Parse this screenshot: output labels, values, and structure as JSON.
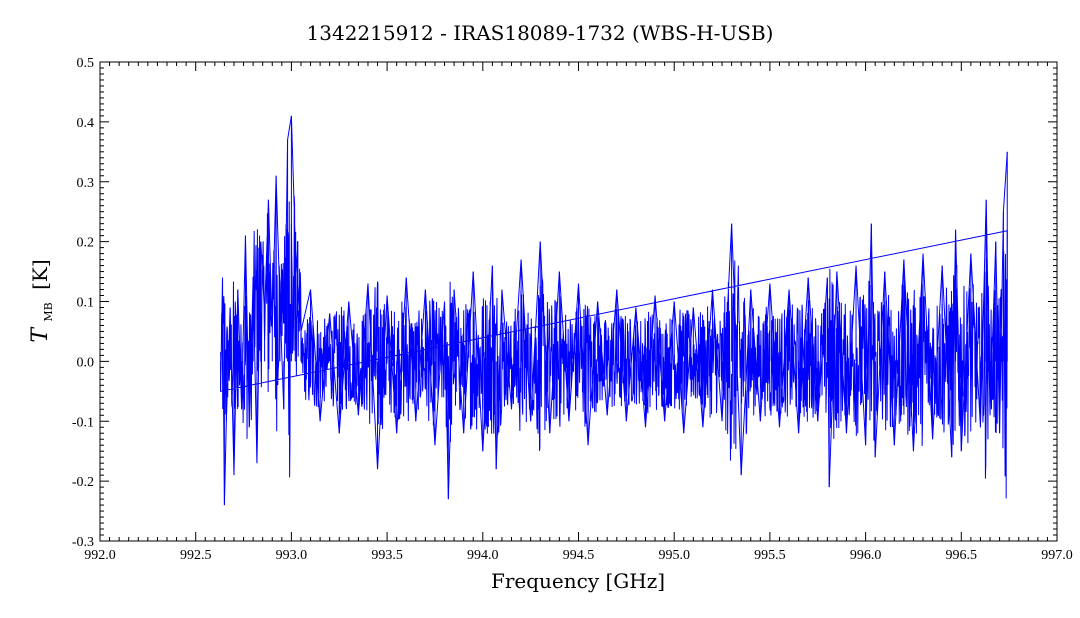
{
  "chart_data": {
    "type": "line",
    "title": "1342215912 - IRAS18089-1732 (WBS-H-USB)",
    "xlabel": "Frequency [GHz]",
    "ylabel_main": "T",
    "ylabel_sub": "MB",
    "ylabel_unit": "[K]",
    "xlim": [
      992.0,
      997.0
    ],
    "ylim": [
      -0.3,
      0.5
    ],
    "x_ticks": [
      "992.0",
      "992.5",
      "993.0",
      "993.5",
      "994.0",
      "994.5",
      "995.0",
      "995.5",
      "996.0",
      "996.5",
      "997.0"
    ],
    "y_ticks": [
      "0.5",
      "0.4",
      "0.3",
      "0.2",
      "0.1",
      "0.0",
      "-0.1",
      "-0.2",
      "-0.3"
    ],
    "grid": false,
    "series": [
      {
        "color": "#0000ff",
        "x_range": [
          992.63,
          996.74
        ],
        "points": [
          [
            992.63,
            -0.05
          ],
          [
            992.64,
            0.14
          ],
          [
            992.65,
            -0.24
          ],
          [
            992.66,
            -0.1
          ],
          [
            992.68,
            0.09
          ],
          [
            992.7,
            -0.19
          ],
          [
            992.72,
            0.12
          ],
          [
            992.74,
            -0.08
          ],
          [
            992.76,
            0.21
          ],
          [
            992.78,
            -0.11
          ],
          [
            992.8,
            0.14
          ],
          [
            992.82,
            -0.17
          ],
          [
            992.84,
            0.2
          ],
          [
            992.86,
            0.08
          ],
          [
            992.88,
            0.27
          ],
          [
            992.9,
            0.05
          ],
          [
            992.92,
            0.31
          ],
          [
            992.94,
            0.1
          ],
          [
            992.96,
            -0.08
          ],
          [
            992.98,
            0.37
          ],
          [
            993.0,
            0.41
          ],
          [
            993.02,
            0.2
          ],
          [
            993.05,
            0.05
          ],
          [
            993.1,
            0.12
          ],
          [
            993.15,
            -0.1
          ],
          [
            993.2,
            0.08
          ],
          [
            993.25,
            -0.12
          ],
          [
            993.3,
            0.1
          ],
          [
            993.35,
            -0.09
          ],
          [
            993.4,
            0.13
          ],
          [
            993.45,
            -0.18
          ],
          [
            993.5,
            0.11
          ],
          [
            993.55,
            -0.12
          ],
          [
            993.6,
            0.14
          ],
          [
            993.65,
            -0.1
          ],
          [
            993.7,
            0.12
          ],
          [
            993.75,
            -0.14
          ],
          [
            993.8,
            0.1
          ],
          [
            993.82,
            -0.23
          ],
          [
            993.85,
            0.12
          ],
          [
            993.9,
            -0.12
          ],
          [
            993.95,
            0.15
          ],
          [
            994.0,
            -0.15
          ],
          [
            994.05,
            0.16
          ],
          [
            994.07,
            -0.18
          ],
          [
            994.1,
            0.12
          ],
          [
            994.15,
            -0.08
          ],
          [
            994.2,
            0.17
          ],
          [
            994.25,
            -0.1
          ],
          [
            994.3,
            0.2
          ],
          [
            994.35,
            -0.12
          ],
          [
            994.4,
            0.15
          ],
          [
            994.45,
            -0.1
          ],
          [
            994.5,
            0.13
          ],
          [
            994.55,
            -0.14
          ],
          [
            994.6,
            0.1
          ],
          [
            994.65,
            -0.09
          ],
          [
            994.7,
            0.12
          ],
          [
            994.75,
            -0.1
          ],
          [
            994.8,
            0.09
          ],
          [
            994.85,
            -0.11
          ],
          [
            994.9,
            0.11
          ],
          [
            994.95,
            -0.1
          ],
          [
            995.0,
            0.1
          ],
          [
            995.05,
            -0.12
          ],
          [
            995.1,
            0.09
          ],
          [
            995.15,
            -0.11
          ],
          [
            995.2,
            0.12
          ],
          [
            995.25,
            -0.1
          ],
          [
            995.3,
            0.23
          ],
          [
            995.35,
            -0.19
          ],
          [
            995.4,
            0.12
          ],
          [
            995.45,
            -0.1
          ],
          [
            995.5,
            0.13
          ],
          [
            995.55,
            -0.11
          ],
          [
            995.6,
            0.12
          ],
          [
            995.65,
            -0.12
          ],
          [
            995.7,
            0.14
          ],
          [
            995.75,
            -0.1
          ],
          [
            995.8,
            0.14
          ],
          [
            995.81,
            -0.21
          ],
          [
            995.85,
            0.15
          ],
          [
            995.9,
            -0.12
          ],
          [
            995.95,
            0.16
          ],
          [
            996.0,
            -0.14
          ],
          [
            996.03,
            0.23
          ],
          [
            996.05,
            -0.16
          ],
          [
            996.1,
            0.15
          ],
          [
            996.15,
            -0.14
          ],
          [
            996.2,
            0.17
          ],
          [
            996.25,
            -0.15
          ],
          [
            996.3,
            0.18
          ],
          [
            996.35,
            -0.13
          ],
          [
            996.4,
            0.16
          ],
          [
            996.45,
            -0.16
          ],
          [
            996.47,
            0.22
          ],
          [
            996.5,
            -0.15
          ],
          [
            996.55,
            0.18
          ],
          [
            996.6,
            -0.11
          ],
          [
            996.63,
            0.27
          ],
          [
            996.65,
            -0.09
          ],
          [
            996.68,
            0.2
          ],
          [
            996.7,
            -0.12
          ],
          [
            996.72,
            0.25
          ],
          [
            996.74,
            0.35
          ]
        ]
      }
    ]
  }
}
